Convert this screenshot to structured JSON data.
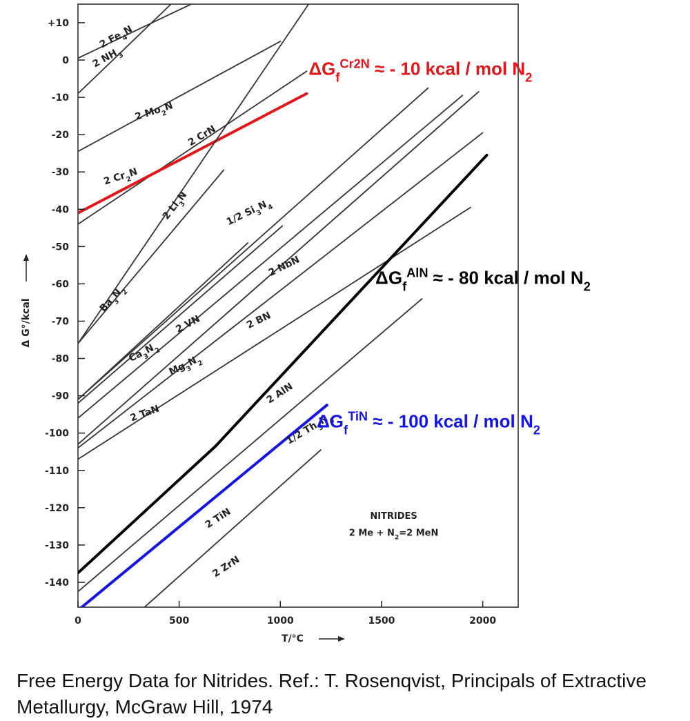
{
  "chart_data": {
    "type": "line",
    "xlabel": "T/°C",
    "ylabel": "Δ G°/kcal",
    "xlim": [
      0,
      2150
    ],
    "ylim": [
      -150,
      15
    ],
    "xticks": [
      0,
      500,
      1000,
      1500,
      2000
    ],
    "yticks": [
      10,
      0,
      -10,
      -20,
      -30,
      -40,
      -50,
      -60,
      -70,
      -80,
      -90,
      -100,
      -110,
      -120,
      -130,
      -140
    ],
    "ytick_labels": [
      "+10",
      "0",
      "-10",
      "-20",
      "-30",
      "-40",
      "-50",
      "-60",
      "-70",
      "-80",
      "-90",
      "-100",
      "-110",
      "-120",
      "-130",
      "-140"
    ],
    "grid": false,
    "series": [
      {
        "name": "2 Fe4N",
        "color": "#333333",
        "points": [
          [
            0,
            0.5
          ],
          [
            560,
            15
          ]
        ]
      },
      {
        "name": "2 NH3",
        "color": "#333333",
        "points": [
          [
            0,
            -9
          ],
          [
            460,
            15
          ]
        ]
      },
      {
        "name": "2 Mo2N",
        "color": "#333333",
        "points": [
          [
            0,
            -24.5
          ],
          [
            1000,
            5
          ]
        ]
      },
      {
        "name": "2 CrN",
        "color": "#333333",
        "points": [
          [
            0,
            -44
          ],
          [
            1130,
            -3
          ]
        ]
      },
      {
        "name": "2 Cr2N",
        "color": "#e4161b",
        "width": 4,
        "points": [
          [
            0,
            -41
          ],
          [
            1130,
            -9
          ]
        ]
      },
      {
        "name": "2 Li3N",
        "color": "#333333",
        "points": [
          [
            0,
            -76
          ],
          [
            1140,
            15
          ]
        ]
      },
      {
        "name": "Ba3N2",
        "color": "#333333",
        "points": [
          [
            0,
            -76
          ],
          [
            720,
            -29.5
          ]
        ]
      },
      {
        "name": "1/2 Si3N4",
        "color": "#333333",
        "points": [
          [
            0,
            -91
          ],
          [
            1730,
            -7.5
          ]
        ]
      },
      {
        "name": "Ca3N2",
        "color": "#333333",
        "points": [
          [
            0,
            -91
          ],
          [
            840,
            -49
          ]
        ]
      },
      {
        "name": "2 VN",
        "color": "#333333",
        "points": [
          [
            0,
            -92
          ],
          [
            1010,
            -44.5
          ]
        ]
      },
      {
        "name": "2 NbN",
        "color": "#333333",
        "points": [
          [
            0,
            -96
          ],
          [
            1900,
            -9.5
          ]
        ]
      },
      {
        "name": "Mg3N2",
        "color": "#333333",
        "points": [
          [
            0,
            -103
          ],
          [
            1980,
            -8.5
          ]
        ]
      },
      {
        "name": "2 BN",
        "color": "#333333",
        "points": [
          [
            0,
            -104
          ],
          [
            2000,
            -19.5
          ]
        ]
      },
      {
        "name": "2 TaN",
        "color": "#333333",
        "points": [
          [
            0,
            -107
          ],
          [
            1940,
            -39.5
          ]
        ]
      },
      {
        "name": "2 AlN",
        "color": "#000000",
        "width": 4,
        "points": [
          [
            0,
            -137.5
          ],
          [
            680,
            -103.5
          ],
          [
            2020,
            -25.5
          ]
        ]
      },
      {
        "name": "1/2 Th3N4",
        "color": "#333333",
        "points": [
          [
            0,
            -142.5
          ],
          [
            1700,
            -64
          ]
        ]
      },
      {
        "name": "2 TiN",
        "color": "#1414e6",
        "width": 4,
        "points": [
          [
            0,
            -147.5
          ],
          [
            1230,
            -92.5
          ]
        ]
      },
      {
        "name": "2 ZrN",
        "color": "#333333",
        "points": [
          [
            260,
            -150
          ],
          [
            1200,
            -104.5
          ]
        ]
      }
    ],
    "curve_labels": [
      {
        "text_parts": [
          "2 Fe",
          "4",
          "N"
        ],
        "x": 195,
        "y": 5.5,
        "angle": -29
      },
      {
        "text_parts": [
          "2 NH",
          "3"
        ],
        "x": 150,
        "y": 0,
        "angle": -29
      },
      {
        "text_parts": [
          "2 Mo",
          "2",
          "N"
        ],
        "x": 380,
        "y": -14.5,
        "angle": -18
      },
      {
        "text_parts": [
          "2 CrN"
        ],
        "x": 620,
        "y": -21,
        "angle": -31
      },
      {
        "text_parts": [
          "2 Cr",
          "2",
          "N"
        ],
        "x": 215,
        "y": -32,
        "angle": -18
      },
      {
        "text_parts": [
          "2 Li",
          "3",
          "N"
        ],
        "x": 490,
        "y": -39.5,
        "angle": -52
      },
      {
        "text_parts": [
          "1/2 Si",
          "3",
          "N",
          "4"
        ],
        "x": 850,
        "y": -41.5,
        "angle": -26
      },
      {
        "text_parts": [
          "Ba",
          "3",
          "N",
          "2"
        ],
        "x": 180,
        "y": -64.5,
        "angle": -48
      },
      {
        "text_parts": [
          "2 NbN"
        ],
        "x": 1025,
        "y": -56,
        "angle": -26
      },
      {
        "text_parts": [
          "2 BN"
        ],
        "x": 900,
        "y": -70.5,
        "angle": -26
      },
      {
        "text_parts": [
          "2 VN"
        ],
        "x": 550,
        "y": -71.5,
        "angle": -28
      },
      {
        "text_parts": [
          "Ca",
          "3",
          "N",
          "2"
        ],
        "x": 330,
        "y": -79,
        "angle": -27
      },
      {
        "text_parts": [
          "Mg",
          "3",
          "N",
          "2"
        ],
        "x": 535,
        "y": -82.5,
        "angle": -26
      },
      {
        "text_parts": [
          "2 TaN"
        ],
        "x": 335,
        "y": -95.5,
        "angle": -20
      },
      {
        "text_parts": [
          "2 AlN"
        ],
        "x": 1005,
        "y": -90,
        "angle": -33
      },
      {
        "text_parts": [
          "1/2 Th",
          "3",
          "N",
          "4"
        ],
        "x": 1150,
        "y": -99.5,
        "angle": -31
      },
      {
        "text_parts": [
          "2 TiN"
        ],
        "x": 700,
        "y": -123.5,
        "angle": -33
      },
      {
        "text_parts": [
          "2 ZrN"
        ],
        "x": 740,
        "y": -136.5,
        "angle": -33
      }
    ],
    "annotations": [
      {
        "parts": [
          [
            "ΔG",
            ""
          ],
          [
            "f",
            "sub"
          ],
          [
            "Cr2N",
            "sup"
          ],
          [
            " ≈ - 10 kcal / mol N",
            ""
          ],
          [
            "2",
            "sub"
          ]
        ],
        "color": "#e4161b",
        "x": 1140,
        "y": -4
      },
      {
        "parts": [
          [
            "ΔG",
            ""
          ],
          [
            "f",
            "sub"
          ],
          [
            "AlN",
            "sup"
          ],
          [
            "  ≈ - 80 kcal / mol N",
            ""
          ],
          [
            "2",
            "sub"
          ]
        ],
        "color": "#000000",
        "x": 1470,
        "y": -60
      },
      {
        "parts": [
          [
            "ΔG",
            ""
          ],
          [
            "f",
            "sub"
          ],
          [
            "TiN",
            "sup"
          ],
          [
            "  ≈  - 100 kcal / mol N",
            ""
          ],
          [
            "2",
            "sub"
          ]
        ],
        "color": "#1414e6",
        "x": 1180,
        "y": -98.5
      }
    ],
    "notes": [
      {
        "parts": [
          [
            "NITRIDES",
            ""
          ]
        ],
        "x": 1560,
        "y": -123
      },
      {
        "parts": [
          [
            "2 Me + N",
            ""
          ],
          [
            "2",
            "sub"
          ],
          [
            "=2 MeN",
            ""
          ]
        ],
        "x": 1560,
        "y": -127.5
      }
    ]
  },
  "caption": "Free Energy Data for Nitrides. Ref.: T. Rosenqvist, Principals of Extractive Metallurgy, McGraw Hill, 1974"
}
